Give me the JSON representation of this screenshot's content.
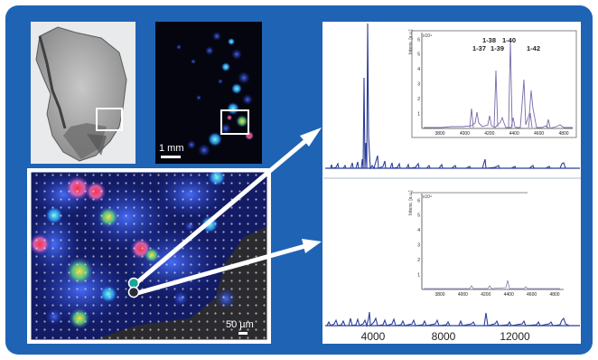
{
  "colors": {
    "frame_blue": "#1f63b4",
    "spectrum_blue": "#2b3f9a",
    "marker_teal": "#1aa59a",
    "arrow_white": "#ffffff"
  },
  "images": {
    "optical_section": "grayscale optical scan of tissue section with boxed region",
    "ion_image": "MALDI ion intensity image (blue to red) with boxed region",
    "zoom_image": "zoomed ion image with laser spot grid and two selected pixels"
  },
  "scale_bars": {
    "ion_image_label": "1 mm",
    "zoom_image_label": "50 µm"
  },
  "spectra": {
    "x_axis_ticks": [
      "4000",
      "8000",
      "12000"
    ],
    "inset_top": {
      "y_label": "Intens. [a.u.]",
      "y_exponent": "x10⁴",
      "y_ticks": [
        "1",
        "2",
        "3",
        "4",
        "5",
        "6"
      ],
      "x_ticks": [
        "3800",
        "4000",
        "4200",
        "4400",
        "4600",
        "4800"
      ],
      "peak_labels": [
        "1-38",
        "1-40",
        "1-37",
        "1-39",
        "1-42"
      ]
    },
    "inset_bottom": {
      "y_label": "Intens. [a.u.]",
      "y_exponent": "x10⁴",
      "y_ticks": [
        "1",
        "2",
        "3",
        "4",
        "5",
        "6"
      ],
      "x_ticks": [
        "3800",
        "4000",
        "4200",
        "4400",
        "4600",
        "4800"
      ]
    }
  }
}
